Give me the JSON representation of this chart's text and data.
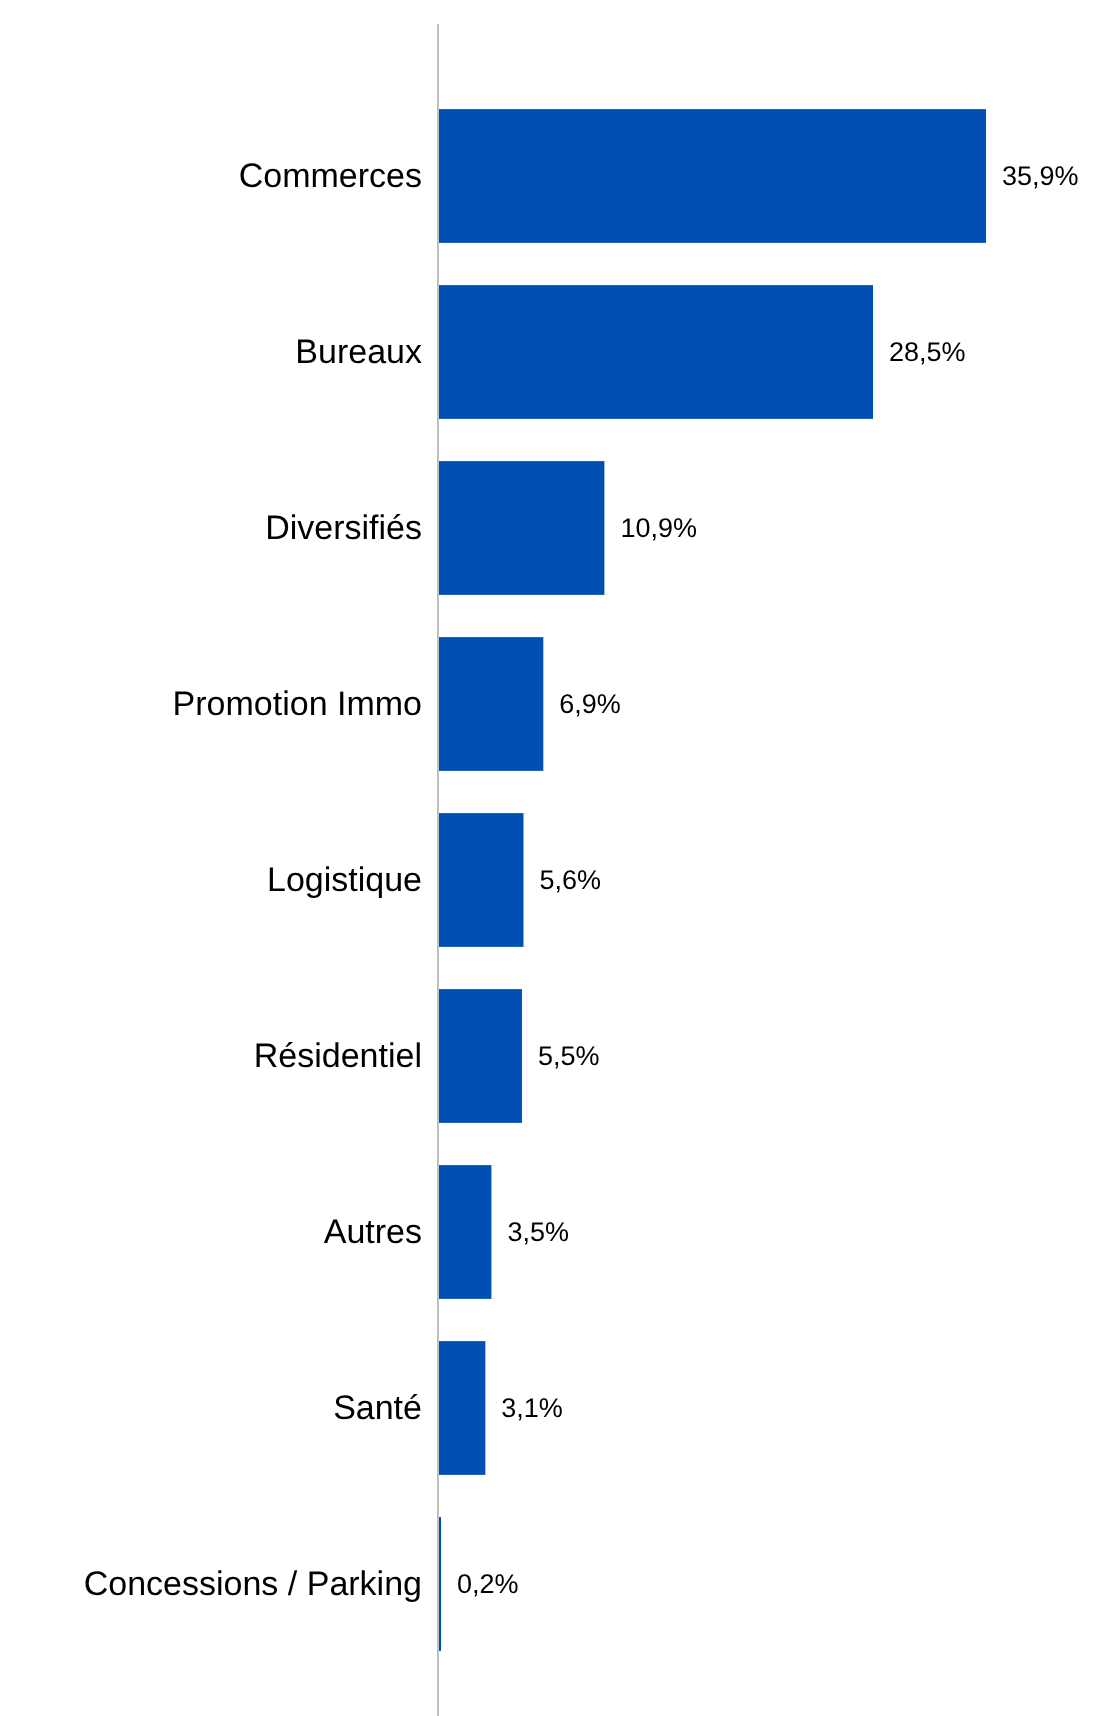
{
  "chart_data": {
    "type": "bar",
    "orientation": "horizontal",
    "categories": [
      "Commerces",
      "Bureaux",
      "Diversifiés",
      "Promotion Immo",
      "Logistique",
      "Résidentiel",
      "Autres",
      "Santé",
      "Concessions / Parking"
    ],
    "values": [
      35.9,
      28.5,
      10.9,
      6.9,
      5.6,
      5.5,
      3.5,
      3.1,
      0.2
    ],
    "value_labels": [
      "35,9%",
      "28,5%",
      "10,9%",
      "6,9%",
      "5,6%",
      "5,5%",
      "3,5%",
      "3,1%",
      "0,2%"
    ],
    "color": "#0050b4"
  }
}
